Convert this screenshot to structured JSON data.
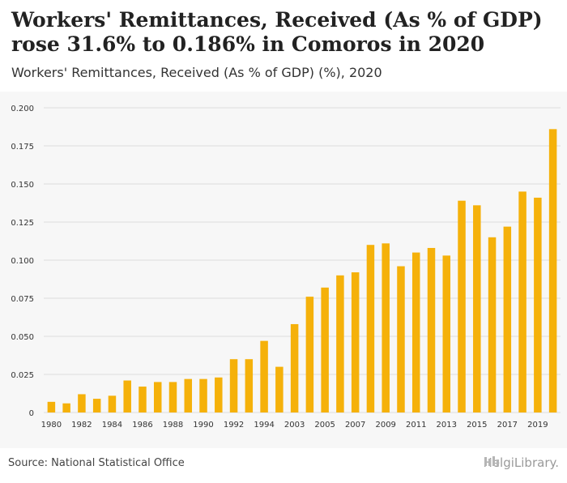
{
  "header": {
    "title": "Workers' Remittances, Received (As % of GDP) rose 31.6% to 0.186% in Comoros in 2020",
    "subtitle": "Workers' Remittances, Received (As % of GDP) (%), 2020"
  },
  "footer": {
    "source": "Source: National Statistical Office",
    "logo_text": "HelgiLibrary."
  },
  "colors": {
    "bar": "#F5B10A",
    "grid": "#dcdcdc",
    "plot_bg": "#f7f7f7",
    "tick_text": "#333333"
  },
  "chart_data": {
    "type": "bar",
    "title": "Workers' Remittances, Received (As % of GDP) rose 31.6% to 0.186% in Comoros in 2020",
    "subtitle": "Workers' Remittances, Received (As % of GDP) (%), 2020",
    "xlabel": "",
    "ylabel": "",
    "ylim": [
      0,
      0.2
    ],
    "yticks": [
      "0",
      "0.025",
      "0.050",
      "0.075",
      "0.100",
      "0.125",
      "0.150",
      "0.175",
      "0.200"
    ],
    "grid": true,
    "categories": [
      "1980",
      "1981",
      "1982",
      "1983",
      "1984",
      "1985",
      "1986",
      "1987",
      "1988",
      "1989",
      "1990",
      "1991",
      "1992",
      "1993",
      "1994",
      "1995",
      "2003",
      "2004",
      "2005",
      "2006",
      "2007",
      "2008",
      "2009",
      "2010",
      "2011",
      "2012",
      "2013",
      "2014",
      "2015",
      "2016",
      "2017",
      "2018",
      "2019",
      "2020"
    ],
    "xtick_labels": [
      "1980",
      "",
      "1982",
      "",
      "1984",
      "",
      "1986",
      "",
      "1988",
      "",
      "1990",
      "",
      "1992",
      "",
      "1994",
      "",
      "2003",
      "",
      "2005",
      "",
      "2007",
      "",
      "2009",
      "",
      "2011",
      "",
      "2013",
      "",
      "2015",
      "",
      "2017",
      "",
      "2019",
      ""
    ],
    "values": [
      0.007,
      0.006,
      0.012,
      0.009,
      0.011,
      0.021,
      0.017,
      0.02,
      0.02,
      0.022,
      0.022,
      0.023,
      0.035,
      0.035,
      0.047,
      0.03,
      0.058,
      0.076,
      0.082,
      0.09,
      0.092,
      0.11,
      0.111,
      0.096,
      0.105,
      0.108,
      0.103,
      0.139,
      0.136,
      0.115,
      0.122,
      0.145,
      0.141,
      0.186
    ]
  }
}
